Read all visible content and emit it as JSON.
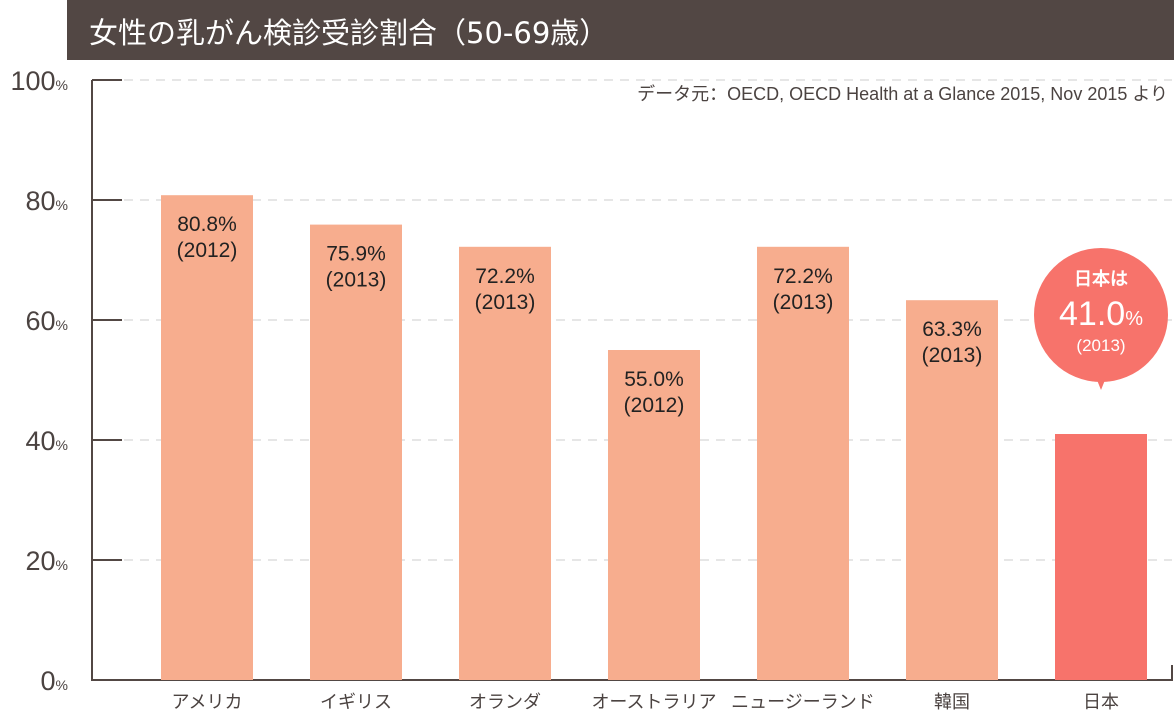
{
  "chart_data": {
    "type": "bar",
    "title": "女性の乳がん検診受診割合（50-69歳）",
    "source": "データ元：OECD, OECD Health at a Glance 2015, Nov 2015 より",
    "categories": [
      "アメリカ",
      "イギリス",
      "オランダ",
      "オーストラリア",
      "ニュージーランド",
      "韓国",
      "日本"
    ],
    "values": [
      80.8,
      75.9,
      72.2,
      55.0,
      72.2,
      63.3,
      41.0
    ],
    "years": [
      "(2012)",
      "(2013)",
      "(2013)",
      "(2012)",
      "(2013)",
      "(2013)",
      "(2013)"
    ],
    "value_labels": [
      "80.8%",
      "75.9%",
      "72.2%",
      "55.0%",
      "72.2%",
      "63.3%",
      "41.0%"
    ],
    "ylim": [
      0,
      100
    ],
    "yticks": [
      0,
      20,
      40,
      60,
      80,
      100
    ],
    "ytick_suffix": "%",
    "grid": true,
    "highlight": {
      "index": 6,
      "heading": "日本は",
      "value": "41.0",
      "unit": "%",
      "year": "(2013)"
    },
    "colors": {
      "bar": "#f7ad8e",
      "highlight": "#f7736b",
      "title_bg": "#524744",
      "axis": "#524744",
      "grid": "#cccccc"
    }
  }
}
